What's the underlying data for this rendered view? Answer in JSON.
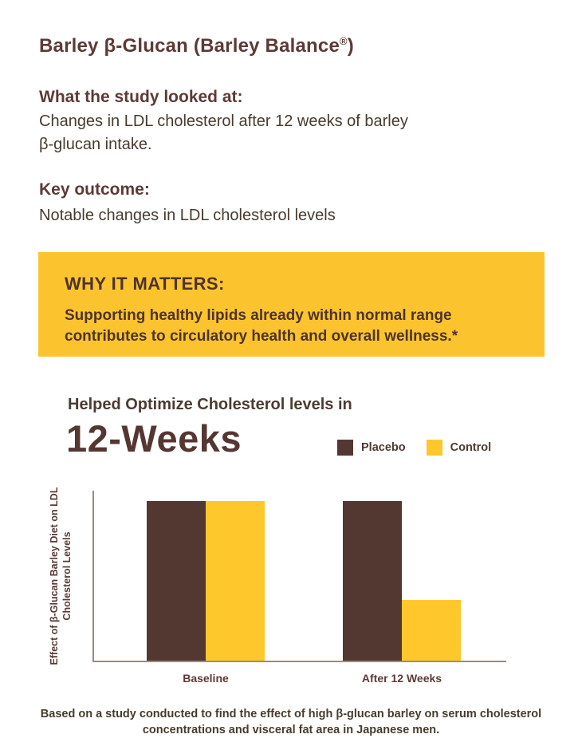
{
  "title": {
    "pre": "Barley β-Glucan (Barley Balance",
    "reg": "®",
    "post": ")"
  },
  "study": {
    "heading": "What the study looked at:",
    "body_lines": [
      "Changes in LDL cholesterol after 12 weeks of barley",
      "β-glucan intake."
    ]
  },
  "outcome": {
    "heading": "Key outcome:",
    "body": "Notable changes in LDL cholesterol levels"
  },
  "callout": {
    "heading": "WHY IT MATTERS:",
    "bg": "#FBC42F",
    "text_color": "#4E332B",
    "body_lines": [
      "Supporting healthy lipids already within normal range",
      "contributes to circulatory health and overall wellness.*"
    ]
  },
  "chart_header": {
    "kicker": "Helped Optimize Cholesterol levels in",
    "big_title": "12-Weeks"
  },
  "chart_data": {
    "type": "bar",
    "title": "Helped Optimize Cholesterol levels in 12-Weeks",
    "categories": [
      "Baseline",
      "After 12 Weeks"
    ],
    "series": [
      {
        "name": "Placebo",
        "color": "#533832",
        "values": [
          100,
          100
        ]
      },
      {
        "name": "Control",
        "color": "#FEC72B",
        "values": [
          100,
          38
        ]
      }
    ],
    "ylabel": "Effect of β-Glucan Barley Diet on LDL Cholesterol Levels",
    "ylabel_lines": [
      "Effect of β-Glucan Barley Diet on LDL",
      "Cholesterol Levels"
    ],
    "xlabel": "",
    "ylim": [
      0,
      100
    ],
    "grid": false,
    "legend_position": "top-right",
    "axis_color": "#9B8A7C"
  },
  "footnote_lines": [
    "Based on a study conducted to find the effect of high β-glucan barley on serum cholesterol",
    "concentrations and visceral fat area in Japanese men."
  ],
  "colors": {
    "heading_brown": "#5D3A36",
    "body_text": "#473B2E",
    "brand_yellow": "#FBC42F",
    "brand_brown": "#533832"
  }
}
